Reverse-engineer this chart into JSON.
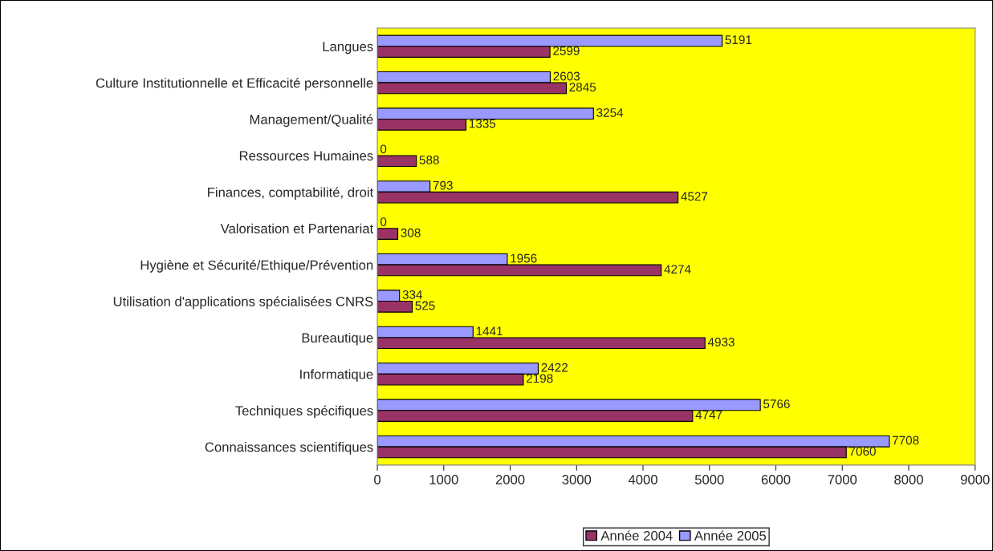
{
  "chart_data": {
    "type": "bar",
    "orientation": "horizontal",
    "categories": [
      "Langues",
      "Culture Institutionnelle et Efficacité personnelle",
      "Management/Qualité",
      "Ressources Humaines",
      "Finances, comptabilité, droit",
      "Valorisation et Partenariat",
      "Hygiène et Sécurité/Ethique/Prévention",
      "Utilisation d'applications spécialisées CNRS",
      "Bureautique",
      "Informatique",
      "Techniques spécifiques",
      "Connaissances scientifiques"
    ],
    "series": [
      {
        "name": "Année 2005",
        "color": "#9999ff",
        "values": [
          5191,
          2603,
          3254,
          0,
          793,
          0,
          1956,
          334,
          1441,
          2422,
          5766,
          7708
        ]
      },
      {
        "name": "Année 2004",
        "color": "#993366",
        "values": [
          2599,
          2845,
          1335,
          588,
          4527,
          308,
          4274,
          525,
          4933,
          2198,
          4747,
          7060
        ]
      }
    ],
    "xlim": [
      0,
      9000
    ],
    "xticks": [
      0,
      1000,
      2000,
      3000,
      4000,
      5000,
      6000,
      7000,
      8000,
      9000
    ],
    "data_labels": true,
    "grid": false,
    "legend": "bottom"
  }
}
